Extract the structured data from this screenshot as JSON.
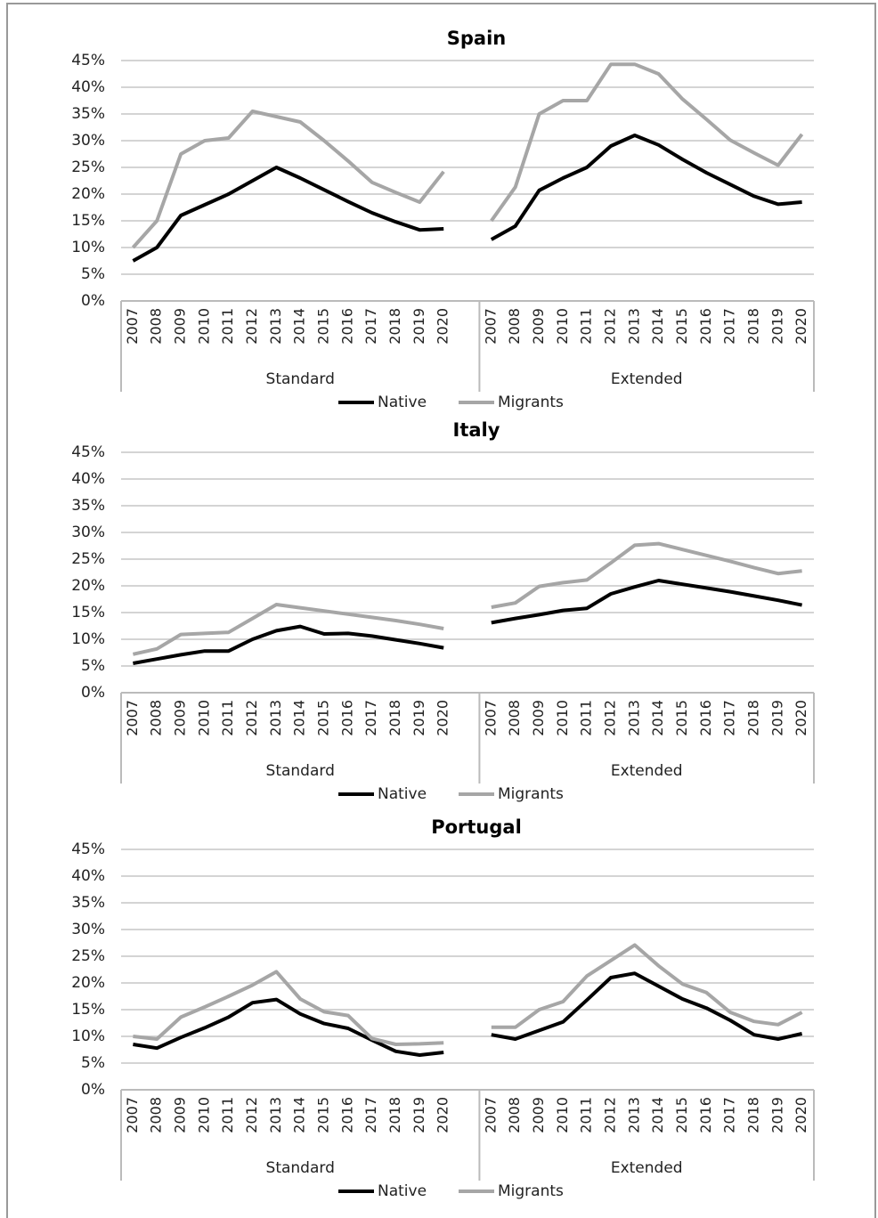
{
  "chart_data": [
    {
      "type": "line",
      "title": "Spain",
      "categories": [
        "2007",
        "2008",
        "2009",
        "2010",
        "2011",
        "2012",
        "2013",
        "2014",
        "2015",
        "2016",
        "2017",
        "2018",
        "2019",
        "2020",
        null,
        "2007",
        "2008",
        "2009",
        "2010",
        "2011",
        "2012",
        "2013",
        "2014",
        "2015",
        "2016",
        "2017",
        "2018",
        "2019",
        "2020"
      ],
      "category_groups": [
        "Standard",
        "Extended"
      ],
      "series": [
        {
          "name": "Native",
          "color": "#000000",
          "values": [
            7.5,
            10,
            16,
            18,
            20,
            22.5,
            25,
            23,
            20.8,
            18.6,
            16.5,
            14.8,
            13.3,
            13.5,
            null,
            11.5,
            14,
            20.7,
            23,
            25,
            29,
            31,
            29.2,
            26.5,
            24,
            21.8,
            19.6,
            18.1,
            18.5
          ]
        },
        {
          "name": "Migrants",
          "color": "#a6a6a6",
          "values": [
            10,
            15,
            27.5,
            30,
            30.5,
            35.5,
            34.5,
            33.5,
            30,
            26.2,
            22.2,
            20.3,
            18.5,
            24.2,
            null,
            15,
            21.3,
            35,
            37.5,
            37.5,
            44.3,
            44.3,
            42.5,
            37.8,
            34,
            30.1,
            27.7,
            25.4,
            31.2
          ]
        }
      ],
      "ylim": [
        0,
        45
      ],
      "yticks": [
        {
          "value": 0,
          "label": "0%"
        },
        {
          "value": 5,
          "label": "5%"
        },
        {
          "value": 10,
          "label": "10%"
        },
        {
          "value": 15,
          "label": "15%"
        },
        {
          "value": 20,
          "label": "20%"
        },
        {
          "value": 25,
          "label": "25%"
        },
        {
          "value": 30,
          "label": "30%"
        },
        {
          "value": 35,
          "label": "35%"
        },
        {
          "value": 40,
          "label": "40%"
        },
        {
          "value": 45,
          "label": "45%"
        }
      ],
      "grid": true
    },
    {
      "type": "line",
      "title": "Italy",
      "categories": [
        "2007",
        "2008",
        "2009",
        "2010",
        "2011",
        "2012",
        "2013",
        "2014",
        "2015",
        "2016",
        "2017",
        "2018",
        "2019",
        "2020",
        null,
        "2007",
        "2008",
        "2009",
        "2010",
        "2011",
        "2012",
        "2013",
        "2014",
        "2015",
        "2016",
        "2017",
        "2018",
        "2019",
        "2020"
      ],
      "category_groups": [
        "Standard",
        "Extended"
      ],
      "series": [
        {
          "name": "Native",
          "color": "#000000",
          "values": [
            5.5,
            6.3,
            7.1,
            7.8,
            7.8,
            10,
            11.6,
            12.4,
            11,
            11.1,
            10.6,
            9.9,
            9.2,
            8.4,
            null,
            13.1,
            13.9,
            14.6,
            15.4,
            15.8,
            18.5,
            19.8,
            21,
            20.3,
            19.6,
            18.9,
            18.1,
            17.3,
            16.4
          ]
        },
        {
          "name": "Migrants",
          "color": "#a6a6a6",
          "values": [
            7.2,
            8.2,
            10.9,
            11.1,
            11.3,
            13.9,
            16.5,
            15.9,
            15.3,
            14.7,
            14.1,
            13.5,
            12.8,
            12,
            null,
            16,
            16.8,
            19.9,
            20.6,
            21.1,
            24.3,
            27.6,
            27.9,
            26.8,
            25.7,
            24.6,
            23.4,
            22.3,
            22.8
          ]
        }
      ],
      "ylim": [
        0,
        45
      ],
      "yticks": [
        {
          "value": 0,
          "label": "0%"
        },
        {
          "value": 5,
          "label": "5%"
        },
        {
          "value": 10,
          "label": "10%"
        },
        {
          "value": 15,
          "label": "15%"
        },
        {
          "value": 20,
          "label": "20%"
        },
        {
          "value": 25,
          "label": "25%"
        },
        {
          "value": 30,
          "label": "30%"
        },
        {
          "value": 35,
          "label": "35%"
        },
        {
          "value": 40,
          "label": "40%"
        },
        {
          "value": 45,
          "label": "45%"
        }
      ],
      "grid": true
    },
    {
      "type": "line",
      "title": "Portugal",
      "categories": [
        "2007",
        "2008",
        "2009",
        "2010",
        "2011",
        "2012",
        "2013",
        "2014",
        "2015",
        "2016",
        "2017",
        "2018",
        "2019",
        "2020",
        null,
        "2007",
        "2008",
        "2009",
        "2010",
        "2011",
        "2012",
        "2013",
        "2014",
        "2015",
        "2016",
        "2017",
        "2018",
        "2019",
        "2020"
      ],
      "category_groups": [
        "Standard",
        "Extended"
      ],
      "series": [
        {
          "name": "Native",
          "color": "#000000",
          "values": [
            8.5,
            7.8,
            9.8,
            11.6,
            13.6,
            16.3,
            16.9,
            14.2,
            12.4,
            11.5,
            9.3,
            7.2,
            6.5,
            7,
            null,
            10.3,
            9.5,
            11.1,
            12.7,
            16.8,
            21,
            21.8,
            19.4,
            17,
            15.3,
            13,
            10.3,
            9.5,
            10.5
          ]
        },
        {
          "name": "Migrants",
          "color": "#a6a6a6",
          "values": [
            10,
            9.5,
            13.6,
            15.5,
            17.5,
            19.6,
            22.1,
            17,
            14.6,
            13.9,
            9.6,
            8.5,
            8.6,
            8.8,
            null,
            11.7,
            11.7,
            15,
            16.5,
            21.3,
            24.2,
            27.1,
            23.2,
            19.8,
            18.2,
            14.5,
            12.8,
            12.2,
            14.5
          ]
        }
      ],
      "ylim": [
        0,
        45
      ],
      "yticks": [
        {
          "value": 0,
          "label": "0%"
        },
        {
          "value": 5,
          "label": "5%"
        },
        {
          "value": 10,
          "label": "10%"
        },
        {
          "value": 15,
          "label": "15%"
        },
        {
          "value": 20,
          "label": "20%"
        },
        {
          "value": 25,
          "label": "25%"
        },
        {
          "value": 30,
          "label": "30%"
        },
        {
          "value": 35,
          "label": "35%"
        },
        {
          "value": 40,
          "label": "40%"
        },
        {
          "value": 45,
          "label": "45%"
        }
      ],
      "grid": true
    }
  ]
}
